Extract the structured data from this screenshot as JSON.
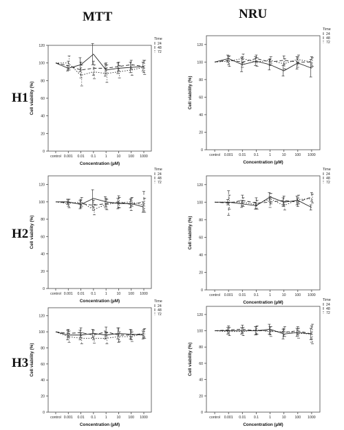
{
  "columns": [
    "MTT",
    "NRU"
  ],
  "rows": [
    "H1",
    "H2",
    "H3"
  ],
  "chart_data": [
    {
      "type": "line",
      "assay": "MTT",
      "compound": "H1",
      "xlabel": "Concentration (µM)",
      "ylabel": "Cell viability (%)",
      "legend_title": "Time",
      "ylim": [
        0,
        120
      ],
      "yticks": [
        0,
        20,
        40,
        60,
        80,
        100,
        120
      ],
      "categories": [
        "control",
        "0.001",
        "0.01",
        "0.1",
        "1",
        "10",
        "100",
        "1000"
      ],
      "series": [
        {
          "name": "24",
          "style": "solid",
          "values": [
            100,
            94,
            98,
            110,
            92,
            94,
            95,
            96
          ],
          "err": [
            0,
            3,
            8,
            12,
            7,
            6,
            6,
            5
          ]
        },
        {
          "name": "48",
          "style": "dashed",
          "values": [
            100,
            97,
            92,
            94,
            94,
            96,
            98,
            96
          ],
          "err": [
            0,
            5,
            9,
            8,
            6,
            5,
            5,
            7
          ]
        },
        {
          "name": "72",
          "style": "dotted",
          "values": [
            100,
            100,
            86,
            90,
            88,
            90,
            92,
            95
          ],
          "err": [
            0,
            8,
            12,
            8,
            10,
            7,
            6,
            8
          ]
        }
      ]
    },
    {
      "type": "line",
      "assay": "NRU",
      "compound": "H1",
      "xlabel": "Concentration (µM)",
      "ylabel": "Cell viability (%)",
      "legend_title": "Time",
      "ylim": [
        0,
        130
      ],
      "yticks": [
        0,
        20,
        40,
        60,
        80,
        100,
        120
      ],
      "categories": [
        "control",
        "0.001",
        "0.01",
        "0.1",
        "1",
        "10",
        "100",
        "1000"
      ],
      "series": [
        {
          "name": "24",
          "style": "solid",
          "values": [
            100,
            104,
            97,
            101,
            97,
            90,
            99,
            93
          ],
          "err": [
            0,
            4,
            8,
            5,
            6,
            6,
            7,
            10
          ]
        },
        {
          "name": "48",
          "style": "dashed",
          "values": [
            100,
            102,
            100,
            104,
            100,
            102,
            100,
            100
          ],
          "err": [
            0,
            5,
            6,
            4,
            4,
            5,
            6,
            6
          ]
        },
        {
          "name": "72",
          "style": "dotted",
          "values": [
            100,
            101,
            104,
            100,
            102,
            98,
            103,
            100
          ],
          "err": [
            0,
            6,
            5,
            5,
            4,
            6,
            5,
            5
          ]
        }
      ]
    },
    {
      "type": "line",
      "assay": "MTT",
      "compound": "H2",
      "xlabel": "Concentration (µM)",
      "ylabel": "Cell viability (%)",
      "legend_title": "Time",
      "ylim": [
        0,
        130
      ],
      "yticks": [
        0,
        20,
        40,
        60,
        80,
        100,
        120
      ],
      "categories": [
        "control",
        "0.001",
        "0.01",
        "0.1",
        "1",
        "10",
        "100",
        "1000"
      ],
      "series": [
        {
          "name": "24",
          "style": "solid",
          "values": [
            100,
            100,
            97,
            104,
            100,
            98,
            98,
            94
          ],
          "err": [
            0,
            3,
            5,
            10,
            6,
            6,
            5,
            6
          ]
        },
        {
          "name": "48",
          "style": "dashed",
          "values": [
            100,
            99,
            98,
            96,
            98,
            100,
            97,
            100
          ],
          "err": [
            0,
            4,
            5,
            6,
            6,
            7,
            7,
            12
          ]
        },
        {
          "name": "72",
          "style": "dotted",
          "values": [
            100,
            98,
            100,
            91,
            97,
            99,
            100,
            96
          ],
          "err": [
            0,
            5,
            5,
            6,
            6,
            6,
            5,
            8
          ]
        }
      ]
    },
    {
      "type": "line",
      "assay": "NRU",
      "compound": "H2",
      "xlabel": "Concentration (µM)",
      "ylabel": "Cell viability (%)",
      "legend_title": "Time",
      "ylim": [
        0,
        130
      ],
      "yticks": [
        0,
        20,
        40,
        60,
        80,
        100,
        120
      ],
      "categories": [
        "control",
        "0.001",
        "0.01",
        "0.1",
        "1",
        "10",
        "100",
        "1000"
      ],
      "series": [
        {
          "name": "24",
          "style": "solid",
          "values": [
            100,
            100,
            98,
            96,
            106,
            100,
            102,
            94
          ],
          "err": [
            0,
            3,
            4,
            4,
            5,
            5,
            5,
            3
          ]
        },
        {
          "name": "48",
          "style": "dashed",
          "values": [
            100,
            99,
            102,
            99,
            100,
            102,
            100,
            106
          ],
          "err": [
            0,
            14,
            6,
            6,
            6,
            5,
            5,
            5
          ]
        },
        {
          "name": "72",
          "style": "dotted",
          "values": [
            100,
            100,
            100,
            97,
            104,
            96,
            103,
            104
          ],
          "err": [
            0,
            8,
            5,
            5,
            6,
            5,
            5,
            5
          ]
        }
      ]
    },
    {
      "type": "line",
      "assay": "MTT",
      "compound": "H3",
      "xlabel": "Concentration (µM)",
      "ylabel": "Cell viability (%)",
      "legend_title": "Time",
      "ylim": [
        0,
        130
      ],
      "yticks": [
        0,
        20,
        40,
        60,
        80,
        100,
        120
      ],
      "categories": [
        "control",
        "0.001",
        "0.01",
        "0.1",
        "1",
        "10",
        "100",
        "1000"
      ],
      "series": [
        {
          "name": "24",
          "style": "solid",
          "values": [
            100,
            96,
            96,
            98,
            96,
            98,
            97,
            96
          ],
          "err": [
            0,
            6,
            6,
            5,
            5,
            7,
            6,
            5
          ]
        },
        {
          "name": "48",
          "style": "dashed",
          "values": [
            100,
            98,
            99,
            96,
            100,
            96,
            96,
            98
          ],
          "err": [
            0,
            5,
            6,
            6,
            6,
            9,
            6,
            5
          ]
        },
        {
          "name": "72",
          "style": "dotted",
          "values": [
            100,
            94,
            92,
            92,
            92,
            94,
            94,
            98
          ],
          "err": [
            0,
            7,
            7,
            6,
            7,
            6,
            6,
            6
          ]
        }
      ]
    },
    {
      "type": "line",
      "assay": "NRU",
      "compound": "H3",
      "xlabel": "Concentration (µM)",
      "ylabel": "Cell viability (%)",
      "legend_title": "Time",
      "ylim": [
        0,
        130
      ],
      "yticks": [
        0,
        20,
        40,
        60,
        80,
        100,
        120
      ],
      "categories": [
        "control",
        "0.001",
        "0.01",
        "0.1",
        "1",
        "10",
        "100",
        "1000"
      ],
      "series": [
        {
          "name": "24",
          "style": "solid",
          "values": [
            100,
            100,
            100,
            100,
            102,
            96,
            98,
            96
          ],
          "err": [
            0,
            4,
            4,
            5,
            6,
            6,
            5,
            7
          ]
        },
        {
          "name": "48",
          "style": "dashed",
          "values": [
            100,
            101,
            102,
            100,
            100,
            98,
            100,
            96
          ],
          "err": [
            0,
            5,
            5,
            5,
            5,
            5,
            5,
            10
          ]
        },
        {
          "name": "72",
          "style": "dotted",
          "values": [
            100,
            99,
            99,
            101,
            99,
            99,
            97,
            96
          ],
          "err": [
            0,
            5,
            5,
            5,
            6,
            6,
            6,
            12
          ]
        }
      ]
    }
  ]
}
